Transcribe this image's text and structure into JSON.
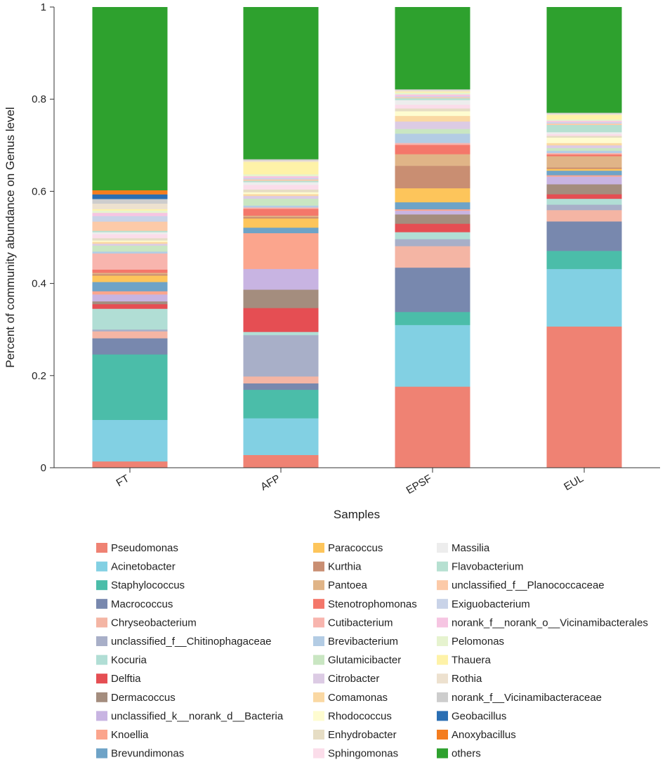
{
  "chart_data": {
    "type": "bar",
    "stacked": true,
    "title": "",
    "xlabel": "Samples",
    "ylabel": "Percent of community abundance on Genus level",
    "ylim": [
      0,
      1
    ],
    "yticks": [
      "0",
      "0.2",
      "0.4",
      "0.6",
      "0.8",
      "1"
    ],
    "categories": [
      "FT",
      "AFP",
      "EPSF",
      "EUL"
    ],
    "series": [
      {
        "name": "Pseudomonas",
        "color": "#EF8273",
        "values": [
          0.014,
          0.028,
          0.174,
          0.312
        ]
      },
      {
        "name": "Acinetobacter",
        "color": "#82D0E3",
        "values": [
          0.09,
          0.08,
          0.132,
          0.127
        ]
      },
      {
        "name": "Staphylococcus",
        "color": "#4BBDA9",
        "values": [
          0.142,
          0.062,
          0.028,
          0.04
        ]
      },
      {
        "name": "Macrococcus",
        "color": "#7888AE",
        "values": [
          0.035,
          0.014,
          0.095,
          0.065
        ]
      },
      {
        "name": "Chryseobacterium",
        "color": "#F4B5A4",
        "values": [
          0.015,
          0.015,
          0.046,
          0.025
        ]
      },
      {
        "name": "unclassified_f__Chitinophagaceae",
        "color": "#A8AFC8",
        "values": [
          0.004,
          0.09,
          0.015,
          0.012
        ]
      },
      {
        "name": "Kocuria",
        "color": "#B1DED5",
        "values": [
          0.045,
          0.007,
          0.015,
          0.013
        ]
      },
      {
        "name": "Delftia",
        "color": "#E54E53",
        "values": [
          0.01,
          0.052,
          0.018,
          0.01
        ]
      },
      {
        "name": "Dermacoccus",
        "color": "#A48D7E",
        "values": [
          0.006,
          0.04,
          0.02,
          0.022
        ]
      },
      {
        "name": "unclassified_k__norank_d__Bacteria",
        "color": "#C8B4E2",
        "values": [
          0.015,
          0.045,
          0.008,
          0.017
        ]
      },
      {
        "name": "Knoellia",
        "color": "#FBA58D",
        "values": [
          0.007,
          0.078,
          0.003,
          0.003
        ]
      },
      {
        "name": "Brevundimonas",
        "color": "#6EA3C7",
        "values": [
          0.02,
          0.012,
          0.015,
          0.01
        ]
      },
      {
        "name": "Paracoccus",
        "color": "#FDC55B",
        "values": [
          0.014,
          0.02,
          0.03,
          0.004
        ]
      },
      {
        "name": "Kurthia",
        "color": "#C98E72",
        "values": [
          0.003,
          0.003,
          0.048,
          0.003
        ]
      },
      {
        "name": "Pantoea",
        "color": "#E0B487",
        "values": [
          0.003,
          0.003,
          0.025,
          0.025
        ]
      },
      {
        "name": "Stenotrophomonas",
        "color": "#F4776A",
        "values": [
          0.007,
          0.015,
          0.02,
          0.004
        ]
      },
      {
        "name": "Cutibacterium",
        "color": "#F8B5AE",
        "values": [
          0.035,
          0.003,
          0.004,
          0.003
        ]
      },
      {
        "name": "Brevibacterium",
        "color": "#B3CCE4",
        "values": [
          0.004,
          0.004,
          0.02,
          0.005
        ]
      },
      {
        "name": "Glutamicibacter",
        "color": "#C9E6C2",
        "values": [
          0.013,
          0.015,
          0.01,
          0.006
        ]
      },
      {
        "name": "Citrobacter",
        "color": "#DCCBE4",
        "values": [
          0.004,
          0.006,
          0.016,
          0.006
        ]
      },
      {
        "name": "Comamonas",
        "color": "#FAD8A3",
        "values": [
          0.004,
          0.004,
          0.012,
          0.005
        ]
      },
      {
        "name": "Rhodococcus",
        "color": "#FEFCD0",
        "values": [
          0.003,
          0.004,
          0.01,
          0.012
        ]
      },
      {
        "name": "Enhydrobacter",
        "color": "#E6DDC4",
        "values": [
          0.005,
          0.006,
          0.006,
          0.004
        ]
      },
      {
        "name": "Sphingomonas",
        "color": "#FBDDEA",
        "values": [
          0.009,
          0.01,
          0.008,
          0.004
        ]
      },
      {
        "name": "Massilia",
        "color": "#EDEDED",
        "values": [
          0.004,
          0.006,
          0.01,
          0.004
        ]
      },
      {
        "name": "Flavobacterium",
        "color": "#B6E0D1",
        "values": [
          0.003,
          0.003,
          0.004,
          0.016
        ]
      },
      {
        "name": "unclassified_f__Planococcaceae",
        "color": "#FCCAA8",
        "values": [
          0.02,
          0.003,
          0.002,
          0.003
        ]
      },
      {
        "name": "Exiguobacterium",
        "color": "#C9D3E8",
        "values": [
          0.012,
          0.003,
          0.002,
          0.003
        ]
      },
      {
        "name": "norank_f__norank_o__Vicinamibacterales",
        "color": "#F6C5E2",
        "values": [
          0.007,
          0.004,
          0.004,
          0.003
        ]
      },
      {
        "name": "Pelomonas",
        "color": "#E6F3CF",
        "values": [
          0.005,
          0.004,
          0.004,
          0.003
        ]
      },
      {
        "name": "Thauera",
        "color": "#FEF2A8",
        "values": [
          0.003,
          0.027,
          0.002,
          0.01
        ]
      },
      {
        "name": "Rothia",
        "color": "#EDE1CF",
        "values": [
          0.012,
          0.003,
          0.003,
          0.003
        ]
      },
      {
        "name": "norank_f__Vicinamibacteraceae",
        "color": "#CDCDCD",
        "values": [
          0.01,
          0.003,
          0.002,
          0.002
        ]
      },
      {
        "name": "Geobacillus",
        "color": "#2A6EB3",
        "values": [
          0.01,
          0.0,
          0.0,
          0.0
        ]
      },
      {
        "name": "Anoxybacillus",
        "color": "#F47D1F",
        "values": [
          0.009,
          0.0,
          0.0,
          0.0
        ]
      },
      {
        "name": "others",
        "color": "#2EA12E",
        "values": [
          0.397,
          0.331,
          0.176,
          0.233
        ]
      }
    ],
    "legend_position": "bottom"
  }
}
